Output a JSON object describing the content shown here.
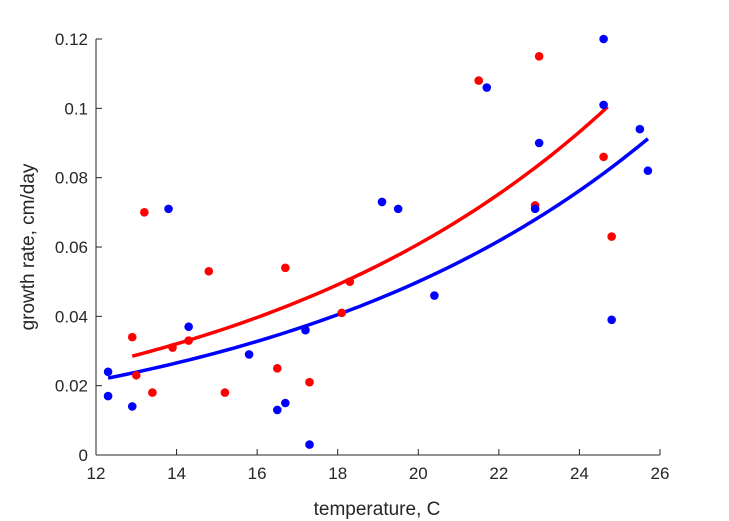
{
  "chart_data": {
    "type": "scatter",
    "title": "",
    "xlabel": "temperature, C",
    "ylabel": "growth rate, cm/day",
    "xlim": [
      12,
      26
    ],
    "ylim": [
      0,
      0.12
    ],
    "xticks": [
      "12",
      "14",
      "16",
      "18",
      "20",
      "22",
      "24",
      "26"
    ],
    "yticks": [
      "0",
      "0.02",
      "0.04",
      "0.06",
      "0.08",
      "0.1",
      "0.12"
    ],
    "grid": false,
    "series": [
      {
        "color": "#ff0000",
        "points": [
          {
            "x": 12.9,
            "y": 0.034
          },
          {
            "x": 13.0,
            "y": 0.023
          },
          {
            "x": 13.2,
            "y": 0.07
          },
          {
            "x": 13.4,
            "y": 0.018
          },
          {
            "x": 13.9,
            "y": 0.031
          },
          {
            "x": 14.3,
            "y": 0.033
          },
          {
            "x": 14.8,
            "y": 0.053
          },
          {
            "x": 15.2,
            "y": 0.018
          },
          {
            "x": 16.5,
            "y": 0.025
          },
          {
            "x": 16.7,
            "y": 0.054
          },
          {
            "x": 17.3,
            "y": 0.021
          },
          {
            "x": 18.1,
            "y": 0.041
          },
          {
            "x": 18.3,
            "y": 0.05
          },
          {
            "x": 21.5,
            "y": 0.108
          },
          {
            "x": 22.9,
            "y": 0.072
          },
          {
            "x": 23.0,
            "y": 0.115
          },
          {
            "x": 24.6,
            "y": 0.086
          },
          {
            "x": 24.8,
            "y": 0.063
          }
        ],
        "fit": {
          "x_range": [
            12.9,
            24.7
          ],
          "a": 0.0259,
          "b": 0.1067
        }
      },
      {
        "color": "#0000ff",
        "points": [
          {
            "x": 12.3,
            "y": 0.024
          },
          {
            "x": 12.3,
            "y": 0.017
          },
          {
            "x": 12.9,
            "y": 0.014
          },
          {
            "x": 13.8,
            "y": 0.071
          },
          {
            "x": 14.3,
            "y": 0.037
          },
          {
            "x": 15.8,
            "y": 0.029
          },
          {
            "x": 16.5,
            "y": 0.013
          },
          {
            "x": 16.7,
            "y": 0.015
          },
          {
            "x": 17.2,
            "y": 0.036
          },
          {
            "x": 17.3,
            "y": 0.003
          },
          {
            "x": 19.1,
            "y": 0.073
          },
          {
            "x": 19.5,
            "y": 0.071
          },
          {
            "x": 20.4,
            "y": 0.046
          },
          {
            "x": 21.7,
            "y": 0.106
          },
          {
            "x": 22.9,
            "y": 0.071
          },
          {
            "x": 23.0,
            "y": 0.09
          },
          {
            "x": 24.6,
            "y": 0.12
          },
          {
            "x": 24.6,
            "y": 0.101
          },
          {
            "x": 24.8,
            "y": 0.039
          },
          {
            "x": 25.5,
            "y": 0.094
          },
          {
            "x": 25.7,
            "y": 0.082
          }
        ],
        "fit": {
          "x_range": [
            12.3,
            25.7
          ],
          "a": 0.0215,
          "b": 0.1055
        }
      }
    ]
  }
}
